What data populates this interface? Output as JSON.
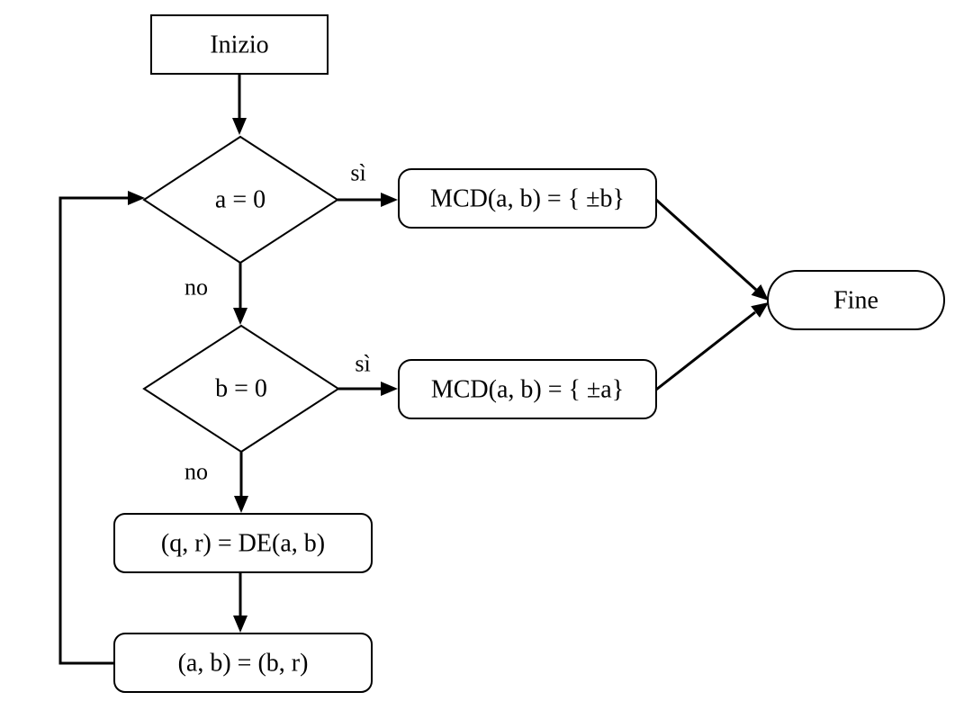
{
  "nodes": {
    "start": "Inizio",
    "check_a": "a = 0",
    "check_b": "b = 0",
    "result_b": "MCD(a, b) = { ±b}",
    "result_a": "MCD(a, b) = { ±a}",
    "division": "(q, r) = DE(a, b)",
    "swap": "(a, b) = (b, r)",
    "end": "Fine"
  },
  "edges": {
    "check_a_yes": "sì",
    "check_a_no": "no",
    "check_b_yes": "sì",
    "check_b_no": "no"
  }
}
